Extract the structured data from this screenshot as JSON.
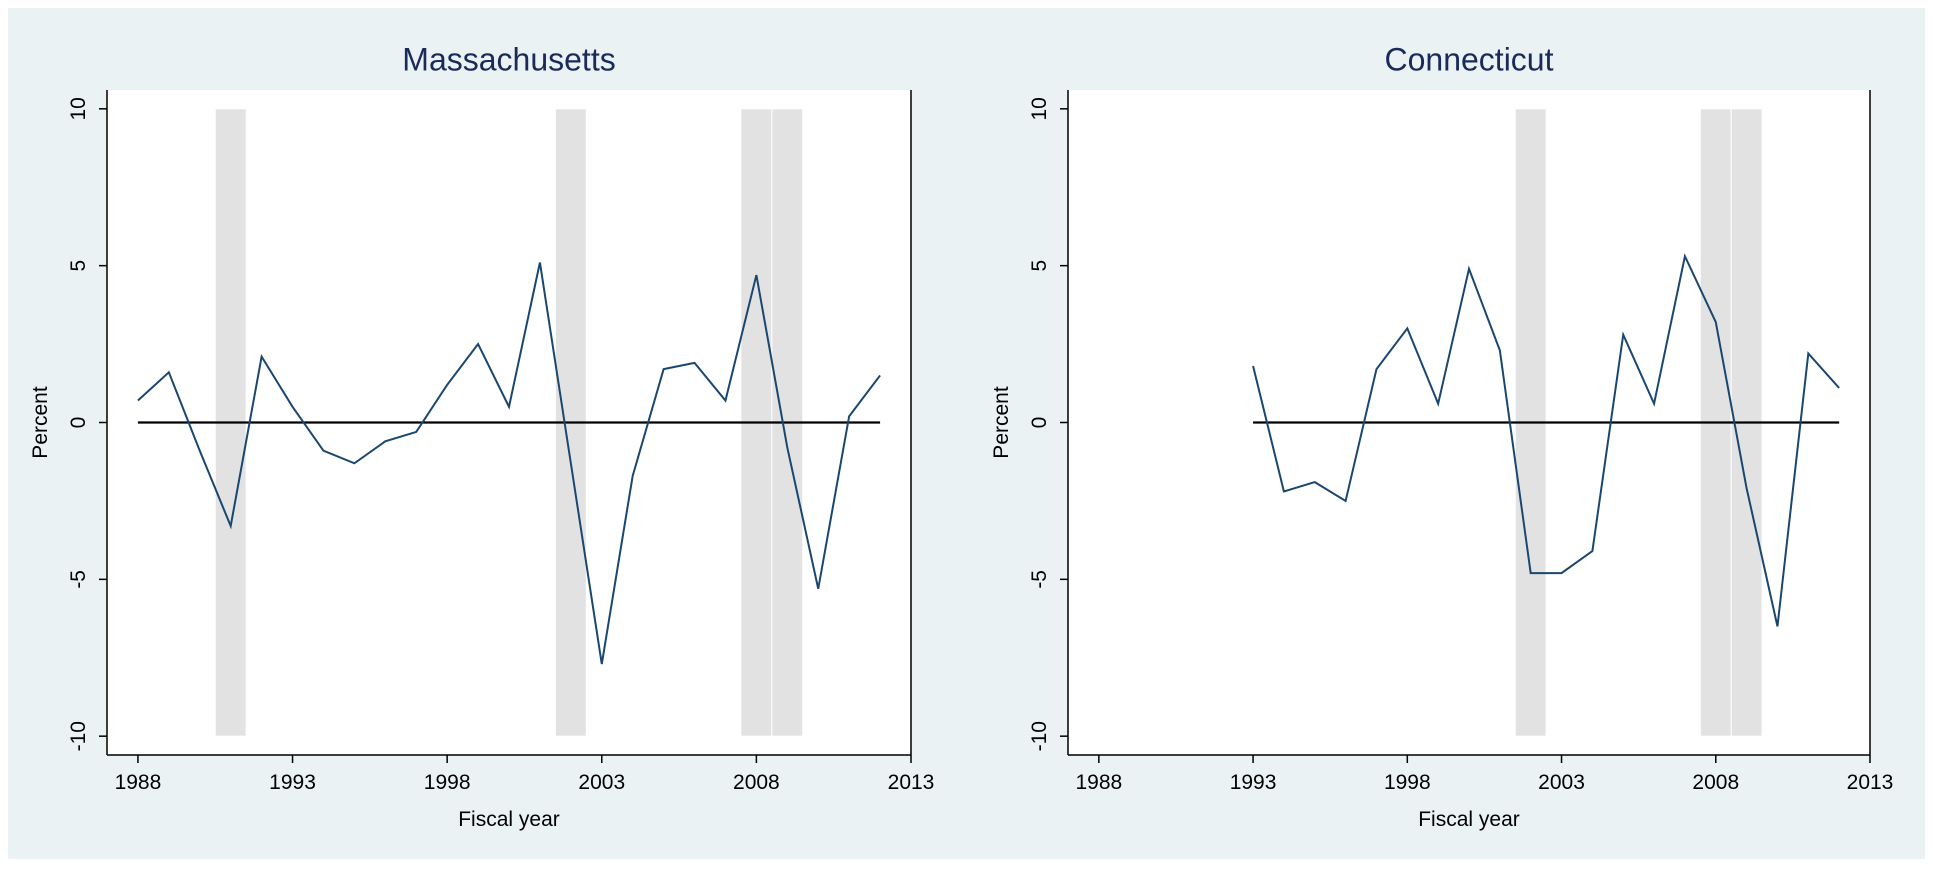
{
  "chart_data": [
    {
      "type": "line",
      "title": "Massachusetts",
      "x_label": "Fiscal year",
      "y_label": "Percent",
      "x": [
        1988,
        1989,
        1990,
        1991,
        1992,
        1993,
        1994,
        1995,
        1996,
        1997,
        1998,
        1999,
        2000,
        2001,
        2002,
        2003,
        2004,
        2005,
        2006,
        2007,
        2008,
        2009,
        2010,
        2011,
        2012
      ],
      "series": [
        {
          "color": "#1a476f",
          "values": [
            0.7,
            1.6,
            -0.9,
            -3.3,
            2.1,
            0.5,
            -0.9,
            -1.3,
            -0.6,
            -0.3,
            1.2,
            2.5,
            0.5,
            5.1,
            -1.3,
            -7.7,
            -1.7,
            1.7,
            1.9,
            0.7,
            4.7,
            -0.8,
            -5.3,
            0.2,
            1.5
          ]
        }
      ],
      "recession_bands": [
        [
          1990.5,
          1991.5
        ],
        [
          2001.5,
          2002.5
        ],
        [
          2007.5,
          2008.5
        ],
        [
          2008.5,
          2009.5
        ]
      ],
      "band_color": "#e2e2e2",
      "yline": 0,
      "xlim": [
        1987,
        2013
      ],
      "ylim": [
        -10.6,
        10.6
      ],
      "xticks": [
        1988,
        1993,
        1998,
        2003,
        2008,
        2013
      ],
      "yticks": [
        -10,
        -5,
        0,
        5,
        10
      ]
    },
    {
      "type": "line",
      "title": "Connecticut",
      "x_label": "Fiscal year",
      "y_label": "Percent",
      "x": [
        1993,
        1994,
        1995,
        1996,
        1997,
        1998,
        1999,
        2000,
        2001,
        2002,
        2003,
        2004,
        2005,
        2006,
        2007,
        2008,
        2009,
        2010,
        2011,
        2012
      ],
      "series": [
        {
          "color": "#1a476f",
          "values": [
            1.8,
            -2.2,
            -1.9,
            -2.5,
            1.7,
            3.0,
            0.6,
            4.9,
            2.3,
            -4.8,
            -4.8,
            -4.1,
            2.8,
            0.6,
            5.3,
            3.2,
            -2.1,
            -6.5,
            2.2,
            1.1
          ]
        }
      ],
      "recession_bands": [
        [
          2001.5,
          2002.5
        ],
        [
          2007.5,
          2008.5
        ],
        [
          2008.5,
          2009.5
        ]
      ],
      "band_color": "#e2e2e2",
      "yline": 0,
      "xlim": [
        1987,
        2013
      ],
      "ylim": [
        -10.6,
        10.6
      ],
      "xticks": [
        1988,
        1993,
        1998,
        2003,
        2008,
        2013
      ],
      "yticks": [
        -10,
        -5,
        0,
        5,
        10
      ]
    }
  ]
}
